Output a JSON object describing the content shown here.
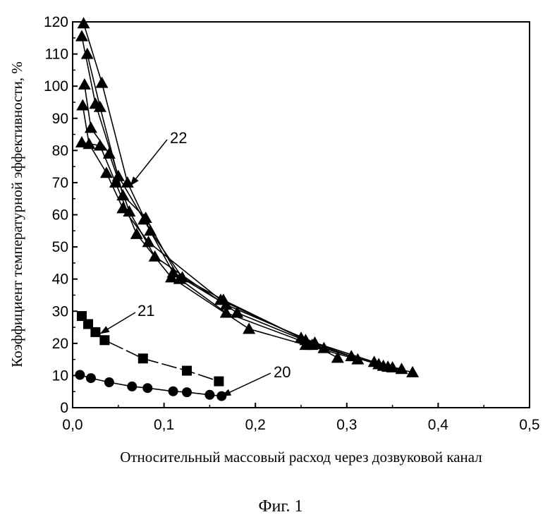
{
  "chart_data": {
    "type": "scatter",
    "xlabel": "Относительный массовый расход через дозвуковой канал",
    "ylabel": "Коэффициент температурной эффективности, %",
    "xlim": [
      0.0,
      0.5
    ],
    "ylim": [
      0,
      120
    ],
    "xticks": [
      0.0,
      0.1,
      0.2,
      0.3,
      0.4,
      0.5
    ],
    "xtick_labels": [
      "0,0",
      "0,1",
      "0,2",
      "0,3",
      "0,4",
      "0,5"
    ],
    "yticks": [
      0,
      10,
      20,
      30,
      40,
      50,
      60,
      70,
      80,
      90,
      100,
      110,
      120
    ],
    "ytick_labels": [
      "0",
      "10",
      "20",
      "30",
      "40",
      "50",
      "60",
      "70",
      "80",
      "90",
      "100",
      "110",
      "120"
    ],
    "grid": false,
    "series": [
      {
        "name": "20",
        "marker": "circle",
        "line": "solid",
        "x": [
          0.008,
          0.02,
          0.04,
          0.065,
          0.082,
          0.11,
          0.125,
          0.15,
          0.163
        ],
        "y": [
          10.2,
          9.2,
          7.9,
          6.6,
          6.1,
          5.1,
          4.8,
          4.0,
          3.6
        ]
      },
      {
        "name": "21",
        "marker": "square",
        "line": "dashed",
        "x": [
          0.01,
          0.017,
          0.025,
          0.035,
          0.077,
          0.125,
          0.16
        ],
        "y": [
          28.5,
          26.0,
          23.5,
          21.0,
          15.3,
          11.5,
          8.2
        ]
      },
      {
        "name": "22",
        "marker": "triangle",
        "line": "solid",
        "curves": [
          {
            "x": [
              0.012,
              0.032,
              0.06,
              0.085,
              0.12,
              0.165,
              0.255,
              0.305,
              0.345,
              0.372
            ],
            "y": [
              119.5,
              101.0,
              70.0,
              55.0,
              40.5,
              33.5,
              21.0,
              16.0,
              12.7,
              11.0
            ]
          },
          {
            "x": [
              0.01,
              0.025,
              0.05,
              0.078,
              0.11,
              0.168,
              0.265,
              0.33,
              0.35
            ],
            "y": [
              115.5,
              94.5,
              72.0,
              58.5,
              42.0,
              32.0,
              20.2,
              14.2,
              12.5
            ]
          },
          {
            "x": [
              0.016,
              0.03,
              0.055,
              0.08,
              0.117,
              0.168,
              0.262,
              0.335,
              0.36
            ],
            "y": [
              110.0,
              93.5,
              66.0,
              59.0,
              40.0,
              29.5,
              19.5,
              13.5,
              12.0
            ]
          },
          {
            "x": [
              0.013,
              0.02,
              0.04,
              0.062,
              0.09,
              0.18,
              0.275,
              0.34
            ],
            "y": [
              100.5,
              87.0,
              79.0,
              61.0,
              47.0,
              29.5,
              18.5,
              13.0
            ]
          },
          {
            "x": [
              0.011,
              0.018,
              0.037,
              0.055,
              0.083,
              0.162,
              0.25,
              0.29
            ],
            "y": [
              94.0,
              82.0,
              73.0,
              62.0,
              51.5,
              33.5,
              21.7,
              15.5
            ]
          },
          {
            "x": [
              0.01,
              0.03,
              0.047,
              0.07,
              0.108,
              0.193,
              0.255,
              0.312
            ],
            "y": [
              82.5,
              81.5,
              70.0,
              54.0,
              40.5,
              24.5,
              19.5,
              15.0
            ]
          }
        ]
      }
    ],
    "annotations": [
      {
        "text": "22",
        "target_x": 0.063,
        "target_y": 69.0
      },
      {
        "text": "21",
        "target_x": 0.03,
        "target_y": 23.0
      },
      {
        "text": "20",
        "target_x": 0.163,
        "target_y": 3.6
      }
    ],
    "caption": "Фиг. 1"
  }
}
